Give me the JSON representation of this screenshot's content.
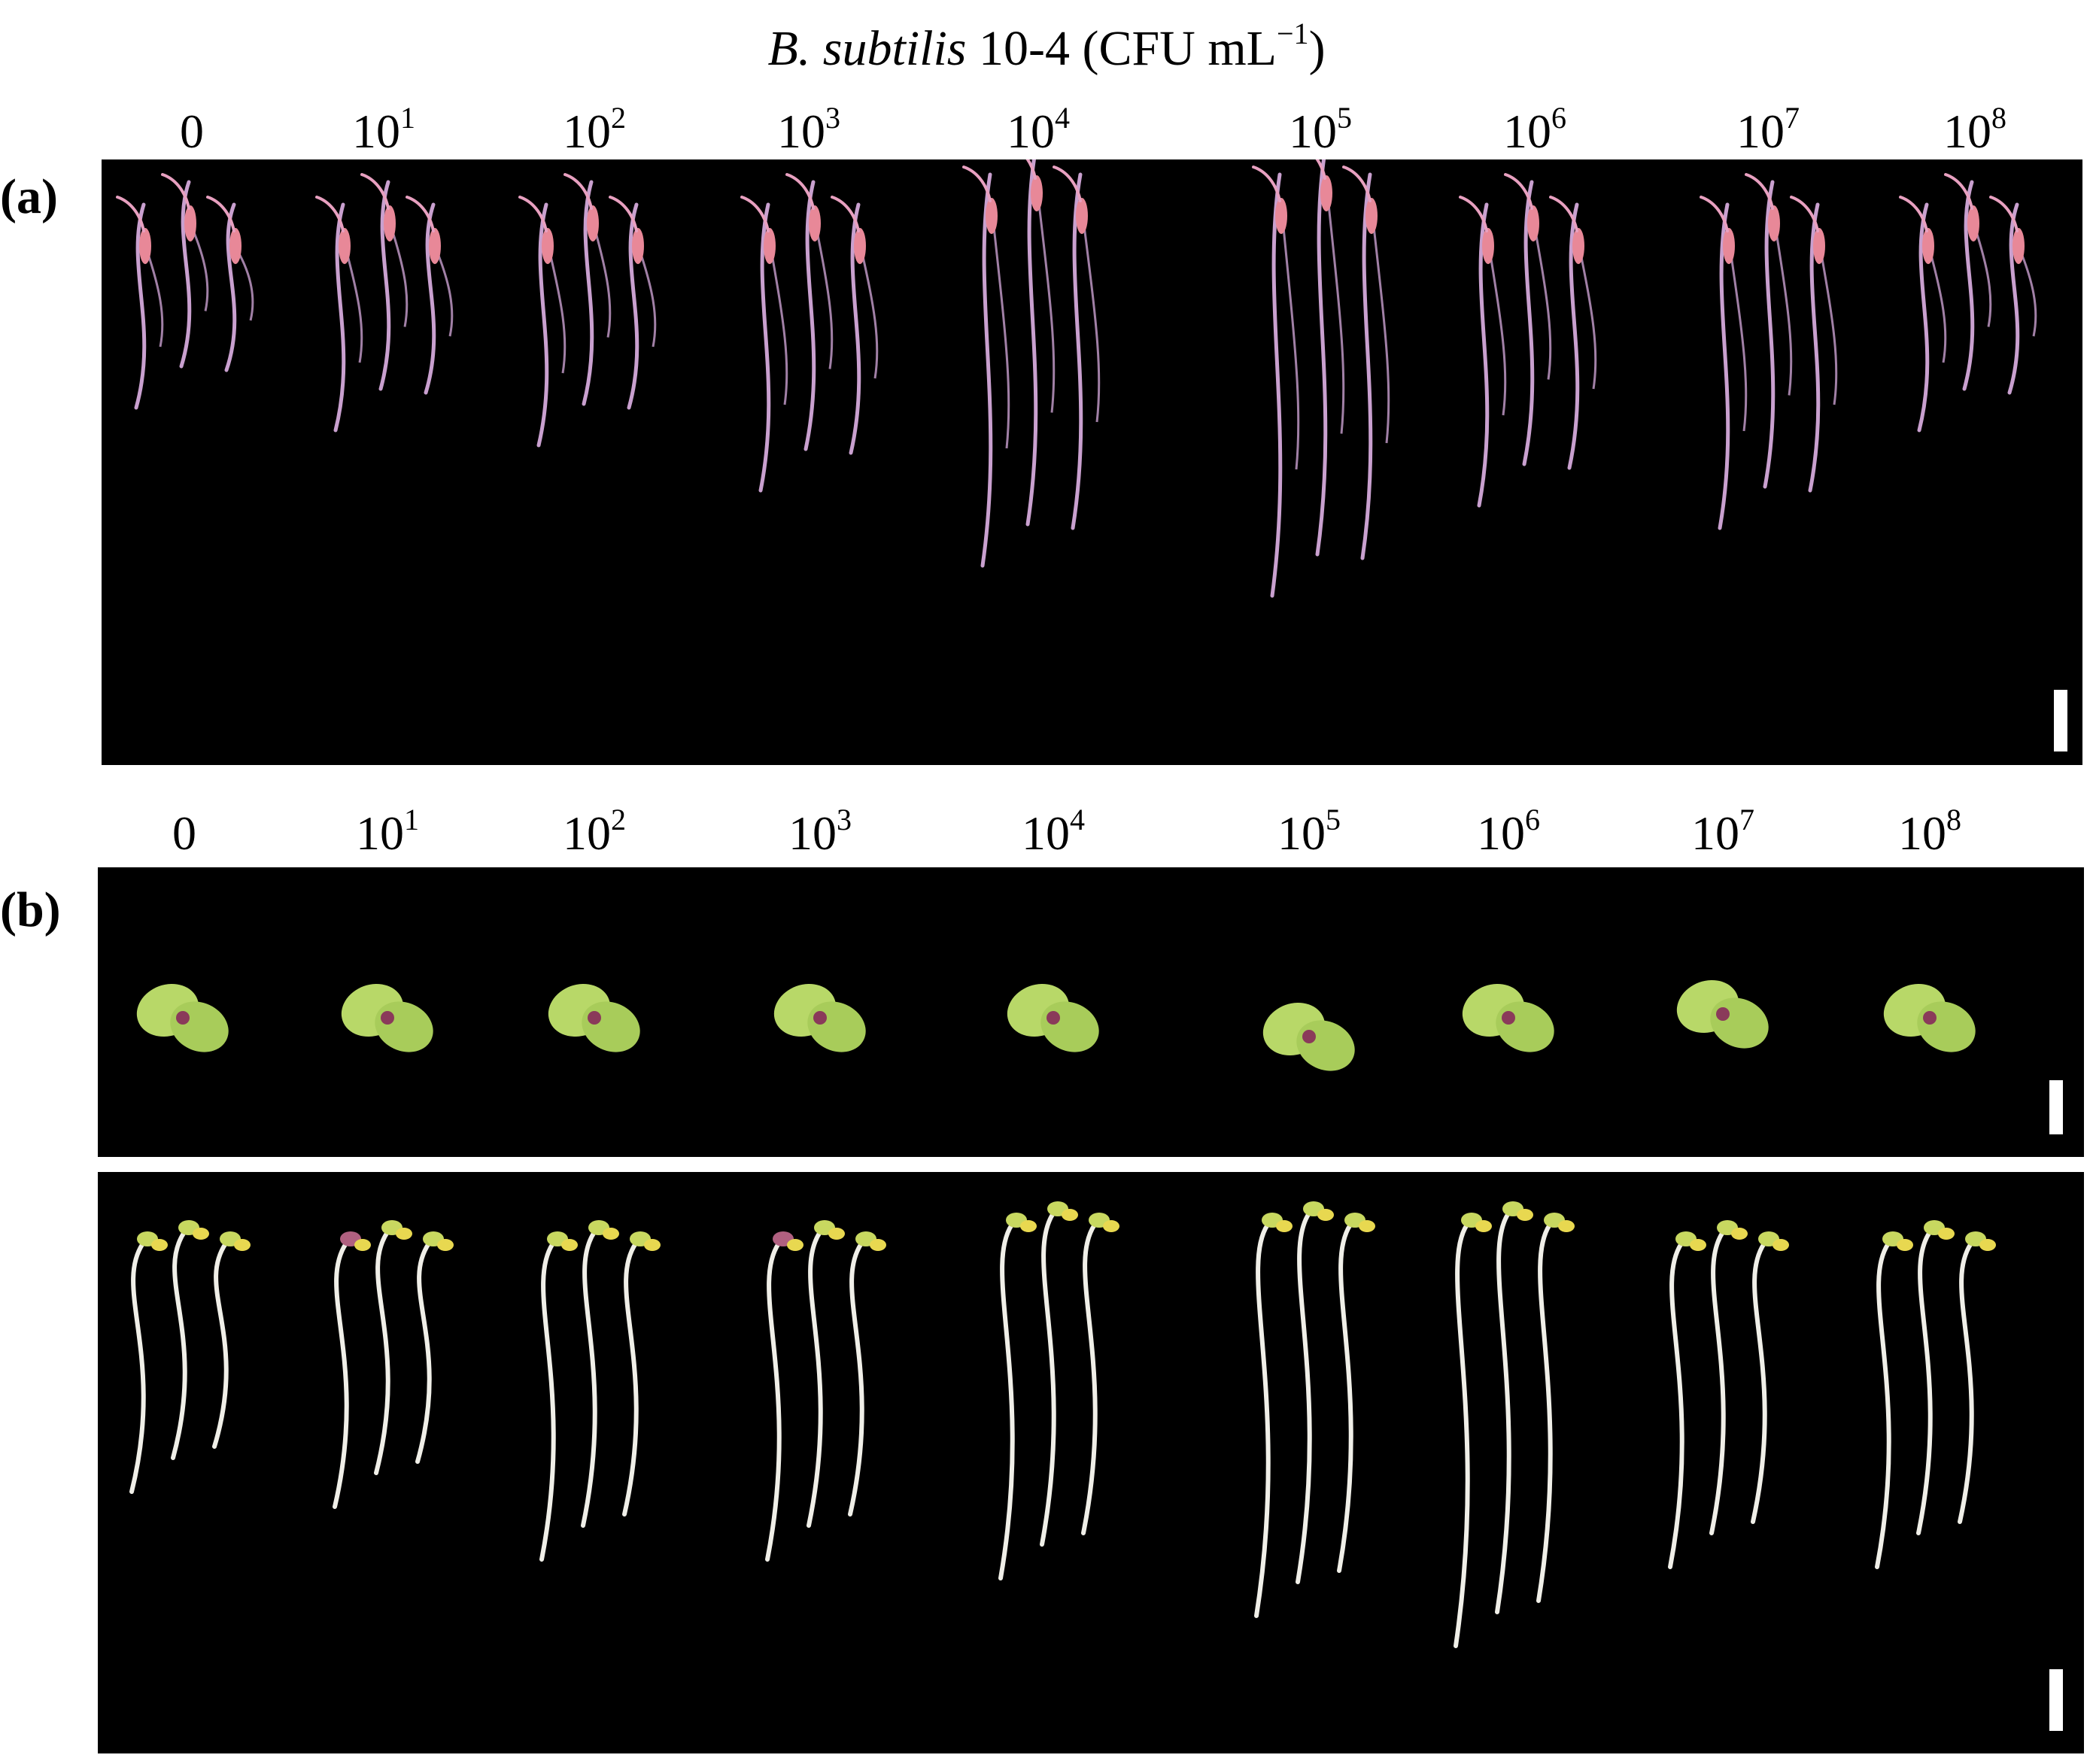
{
  "title": {
    "species": "B. subtilis",
    "rest": " 10-4 (CFU mL",
    "exponent": "−1",
    "close": ")"
  },
  "concentrations": [
    {
      "base": "0",
      "exp": ""
    },
    {
      "base": "10",
      "exp": "1"
    },
    {
      "base": "10",
      "exp": "2"
    },
    {
      "base": "10",
      "exp": "3"
    },
    {
      "base": "10",
      "exp": "4"
    },
    {
      "base": "10",
      "exp": "5"
    },
    {
      "base": "10",
      "exp": "6"
    },
    {
      "base": "10",
      "exp": "7"
    },
    {
      "base": "10",
      "exp": "8"
    }
  ],
  "panels": {
    "a": {
      "label": "(a)"
    },
    "b": {
      "label": "(b)"
    }
  },
  "colors": {
    "background": "#000000",
    "root_pink": "#c9a0cf",
    "hypocotyl_pink": "#e88898",
    "cotyledon_green": "#b8d868",
    "stem_white": "#f0efe8"
  }
}
